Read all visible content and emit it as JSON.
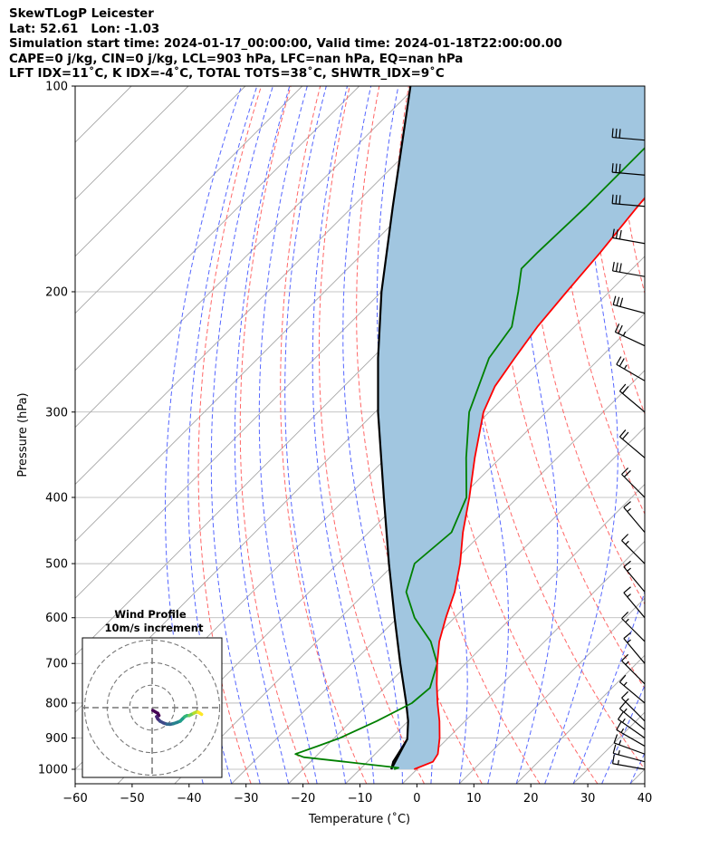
{
  "header": {
    "line1": "SkewTLogP Leicester",
    "line2": "Lat: 52.61   Lon: -1.03",
    "line3": "Simulation start time: 2024-01-17_00:00:00, Valid time: 2024-01-18T22:00:00.00",
    "line4": "CAPE=0 j/kg, CIN=0 j/kg, LCL=903 hPa, LFC=nan hPa, EQ=nan hPa",
    "line5": "LFT IDX=11˚C, K IDX=-4˚C, TOTAL TOTS=38˚C, SHWTR_IDX=9˚C"
  },
  "colors": {
    "temperature": "#ff0000",
    "dewpoint": "#008000",
    "parcel": "#000000",
    "shade": "#a1c6e0",
    "dry_adiabat": "#ff6666",
    "moist_adiabat": "#5566ff",
    "mixing_ratio": "#6a6aee",
    "isotherm": "#a6a6a6"
  },
  "chart_data": [
    {
      "type": "skewt",
      "xlabel": "Temperature (˚C)",
      "ylabel": "Pressure (hPa)",
      "xlim": [
        -60,
        40
      ],
      "ylim": [
        1050,
        100
      ],
      "y_scale": "log",
      "grid": true,
      "x_ticks": [
        -60,
        -50,
        -40,
        -30,
        -20,
        -10,
        0,
        10,
        20,
        30,
        40
      ],
      "y_ticks": [
        1000,
        900,
        800,
        700,
        600,
        500,
        400,
        300,
        200,
        100
      ],
      "series": [
        {
          "key": "temperature",
          "points": [
            [
              1000,
              -0.5
            ],
            [
              975,
              1.5
            ],
            [
              950,
              1.0
            ],
            [
              900,
              -1.5
            ],
            [
              850,
              -4.5
            ],
            [
              800,
              -8.0
            ],
            [
              750,
              -11.5
            ],
            [
              700,
              -15.0
            ],
            [
              650,
              -18.5
            ],
            [
              600,
              -21.5
            ],
            [
              550,
              -24.5
            ],
            [
              500,
              -28.5
            ],
            [
              450,
              -33.5
            ],
            [
              400,
              -38.5
            ],
            [
              350,
              -44.5
            ],
            [
              300,
              -51.0
            ],
            [
              275,
              -53.5
            ],
            [
              250,
              -55.0
            ],
            [
              225,
              -56.5
            ],
            [
              200,
              -57.5
            ],
            [
              175,
              -58.5
            ],
            [
              150,
              -60.0
            ],
            [
              125,
              -61.5
            ],
            [
              115,
              -61.0
            ],
            [
              100,
              -63.0
            ]
          ]
        },
        {
          "key": "dewpoint",
          "points": [
            [
              1000,
              -4.0
            ],
            [
              995,
              -3.5
            ],
            [
              975,
              -14.0
            ],
            [
              960,
              -22.0
            ],
            [
              950,
              -24.0
            ],
            [
              925,
              -21.5
            ],
            [
              900,
              -19.0
            ],
            [
              850,
              -15.5
            ],
            [
              800,
              -12.5
            ],
            [
              760,
              -12.0
            ],
            [
              700,
              -15.0
            ],
            [
              650,
              -20.0
            ],
            [
              600,
              -27.0
            ],
            [
              550,
              -33.0
            ],
            [
              500,
              -36.5
            ],
            [
              450,
              -35.5
            ],
            [
              400,
              -39.0
            ],
            [
              350,
              -46.0
            ],
            [
              300,
              -53.5
            ],
            [
              250,
              -59.5
            ],
            [
              225,
              -61.0
            ],
            [
              200,
              -66.0
            ],
            [
              185,
              -69.5
            ],
            [
              175,
              -69.5
            ],
            [
              150,
              -69.0
            ],
            [
              100,
              -69.0
            ]
          ]
        },
        {
          "key": "parcel",
          "points": [
            [
              1000,
              -4.5
            ],
            [
              903,
              -7.0
            ],
            [
              850,
              -10.0
            ],
            [
              800,
              -13.5
            ],
            [
              700,
              -21.5
            ],
            [
              600,
              -30.5
            ],
            [
              500,
              -41.0
            ],
            [
              400,
              -53.5
            ],
            [
              300,
              -69.5
            ],
            [
              250,
              -79.0
            ],
            [
              200,
              -90.0
            ],
            [
              150,
              -103.0
            ],
            [
              100,
              -121.0
            ]
          ]
        }
      ],
      "parcel_start": [
        [
          1000,
          -4.5
        ],
        [
          975,
          -5.5
        ],
        [
          950,
          -6.0
        ],
        [
          903,
          -7.0
        ]
      ],
      "wind_barbs": [
        {
          "p": 1000,
          "speed_kt": 15,
          "dir_deg": 280
        },
        {
          "p": 975,
          "speed_kt": 15,
          "dir_deg": 285
        },
        {
          "p": 950,
          "speed_kt": 15,
          "dir_deg": 290
        },
        {
          "p": 925,
          "speed_kt": 15,
          "dir_deg": 300
        },
        {
          "p": 900,
          "speed_kt": 15,
          "dir_deg": 305
        },
        {
          "p": 875,
          "speed_kt": 15,
          "dir_deg": 310
        },
        {
          "p": 850,
          "speed_kt": 15,
          "dir_deg": 315
        },
        {
          "p": 800,
          "speed_kt": 15,
          "dir_deg": 310
        },
        {
          "p": 750,
          "speed_kt": 15,
          "dir_deg": 315
        },
        {
          "p": 700,
          "speed_kt": 15,
          "dir_deg": 320
        },
        {
          "p": 650,
          "speed_kt": 15,
          "dir_deg": 315
        },
        {
          "p": 600,
          "speed_kt": 15,
          "dir_deg": 320
        },
        {
          "p": 550,
          "speed_kt": 15,
          "dir_deg": 320
        },
        {
          "p": 500,
          "speed_kt": 15,
          "dir_deg": 315
        },
        {
          "p": 450,
          "speed_kt": 15,
          "dir_deg": 320
        },
        {
          "p": 400,
          "speed_kt": 20,
          "dir_deg": 315
        },
        {
          "p": 350,
          "speed_kt": 20,
          "dir_deg": 310
        },
        {
          "p": 300,
          "speed_kt": 20,
          "dir_deg": 310
        },
        {
          "p": 270,
          "speed_kt": 25,
          "dir_deg": 300
        },
        {
          "p": 240,
          "speed_kt": 25,
          "dir_deg": 295
        },
        {
          "p": 215,
          "speed_kt": 30,
          "dir_deg": 285
        },
        {
          "p": 190,
          "speed_kt": 30,
          "dir_deg": 280
        },
        {
          "p": 170,
          "speed_kt": 30,
          "dir_deg": 280
        },
        {
          "p": 150,
          "speed_kt": 30,
          "dir_deg": 275
        },
        {
          "p": 135,
          "speed_kt": 30,
          "dir_deg": 275
        },
        {
          "p": 120,
          "speed_kt": 30,
          "dir_deg": 275
        }
      ]
    },
    {
      "type": "hodograph",
      "title": "Wind Profile",
      "subtitle": "10m/s increment",
      "rings_ms": [
        10,
        20,
        30
      ],
      "max_ms": 31,
      "colormap": "viridis",
      "trace": [
        [
          0.3,
          -1.2
        ],
        [
          2.5,
          -2.5
        ],
        [
          3.0,
          -3.5
        ],
        [
          2.0,
          -4.0
        ],
        [
          2.5,
          -5.0
        ],
        [
          3.5,
          -6.0
        ],
        [
          5.0,
          -6.8
        ],
        [
          6.5,
          -7.3
        ],
        [
          8.0,
          -7.4
        ],
        [
          9.5,
          -7.1
        ],
        [
          11.0,
          -6.6
        ],
        [
          12.5,
          -6.0
        ],
        [
          13.5,
          -5.0
        ],
        [
          14.5,
          -4.0
        ],
        [
          15.5,
          -3.5
        ],
        [
          16.5,
          -3.5
        ],
        [
          17.5,
          -3.0
        ],
        [
          18.5,
          -2.5
        ],
        [
          19.5,
          -2.0
        ],
        [
          20.5,
          -2.0
        ],
        [
          21.3,
          -2.5
        ],
        [
          22.0,
          -3.0
        ]
      ]
    }
  ]
}
